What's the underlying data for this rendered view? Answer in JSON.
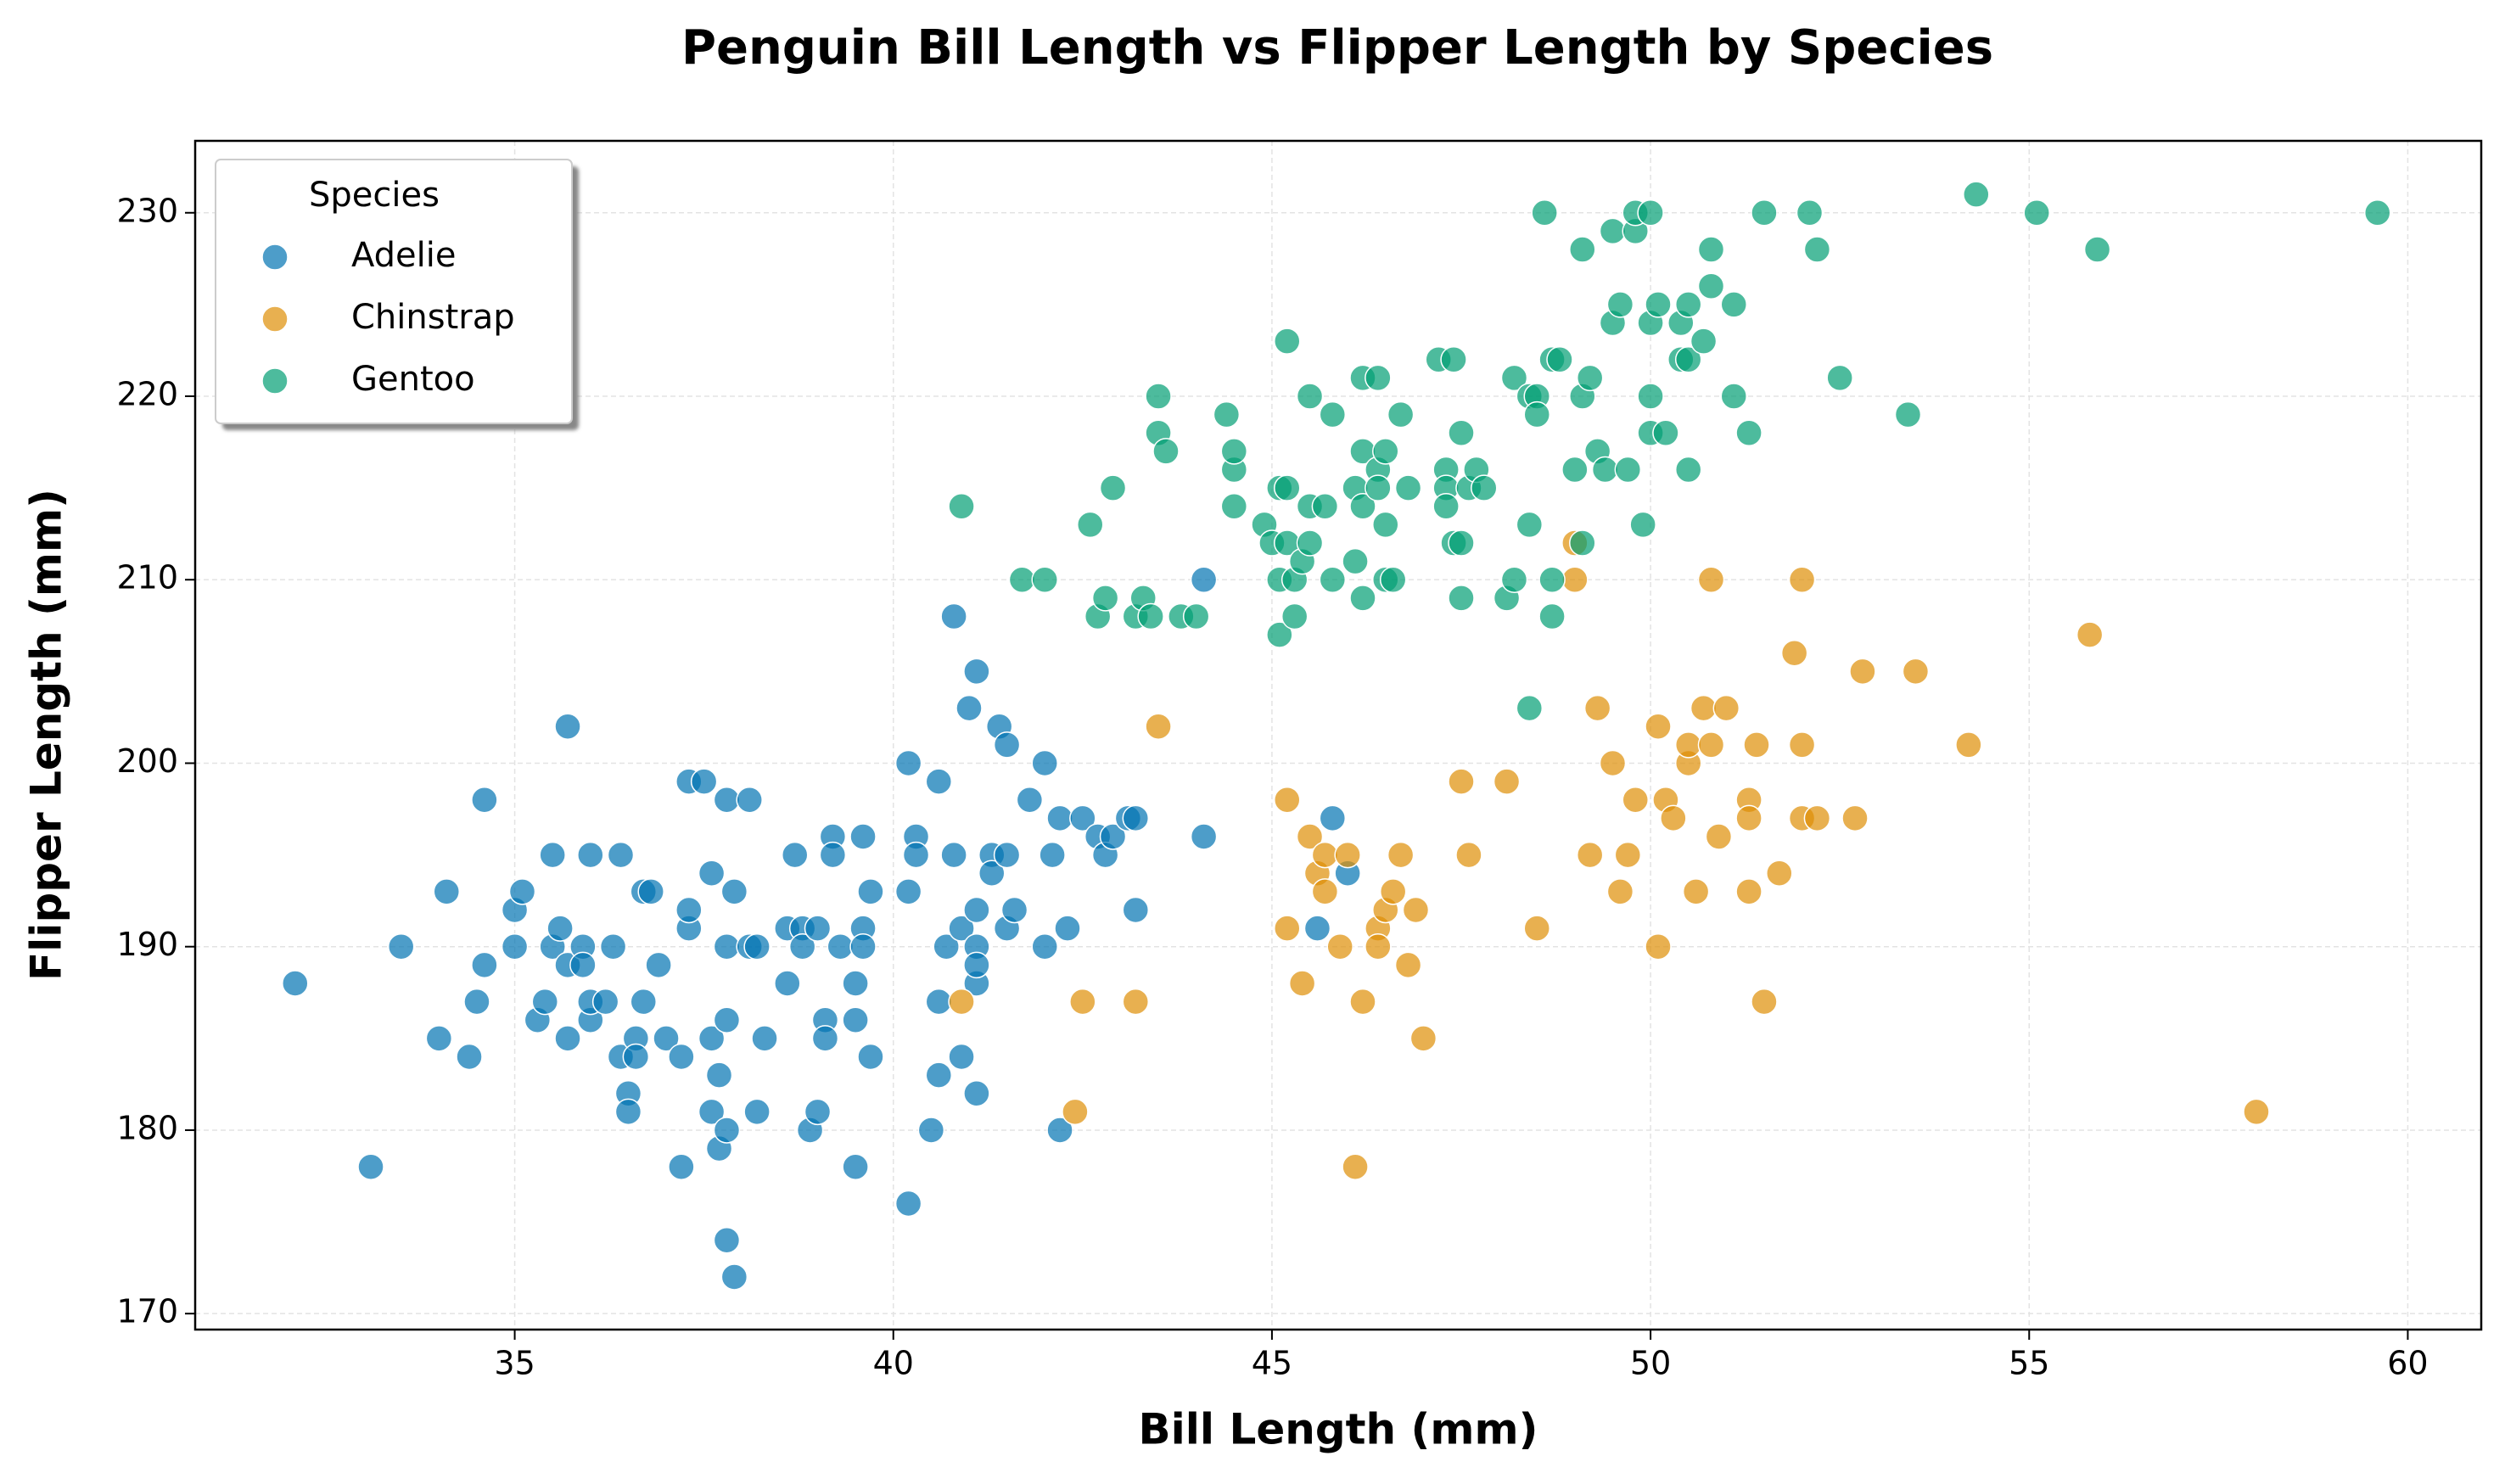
{
  "chart_data": {
    "type": "scatter",
    "title": "Penguin Bill Length vs Flipper Length by Species",
    "x_label": "Bill Length (mm)",
    "y_label": "Flipper Length (mm)",
    "xlim": [
      30.78,
      60.97
    ],
    "ylim": [
      169.13,
      233.92
    ],
    "xticks": [
      35,
      40,
      45,
      50,
      55,
      60
    ],
    "yticks": [
      170,
      180,
      190,
      200,
      210,
      220,
      230
    ],
    "grid": true,
    "legend": "upper left",
    "legend_title": "Species",
    "series": [
      {
        "name": "Adelie",
        "color": "#0173b2",
        "x": [
          32.1,
          33.1,
          33.5,
          34.1,
          34.0,
          34.4,
          34.5,
          34.6,
          34.6,
          35.0,
          35.0,
          35.1,
          35.3,
          35.4,
          35.5,
          35.5,
          35.6,
          35.7,
          35.7,
          35.7,
          35.9,
          35.9,
          36.0,
          36.0,
          36.0,
          36.2,
          36.3,
          36.4,
          36.4,
          36.5,
          36.5,
          36.6,
          36.6,
          36.7,
          36.7,
          36.8,
          36.9,
          37.0,
          37.2,
          37.2,
          37.3,
          37.3,
          37.3,
          37.5,
          37.6,
          37.6,
          37.6,
          37.7,
          37.7,
          37.8,
          37.8,
          37.8,
          37.8,
          37.8,
          37.9,
          37.9,
          38.1,
          38.1,
          38.2,
          38.2,
          38.3,
          38.6,
          38.6,
          38.7,
          38.8,
          38.8,
          38.9,
          39.0,
          39.0,
          39.1,
          39.1,
          39.2,
          39.2,
          39.3,
          39.5,
          39.5,
          39.5,
          39.6,
          39.6,
          39.6,
          39.7,
          39.7,
          40.2,
          40.2,
          40.2,
          40.3,
          40.3,
          40.5,
          40.6,
          40.6,
          40.6,
          40.7,
          40.8,
          40.8,
          40.9,
          40.9,
          41.0,
          41.1,
          41.1,
          41.1,
          41.1,
          41.1,
          41.1,
          41.3,
          41.3,
          41.4,
          41.5,
          41.5,
          41.5,
          41.6,
          41.8,
          42.0,
          42.0,
          42.1,
          42.2,
          42.2,
          42.3,
          42.5,
          42.7,
          42.8,
          42.9,
          43.1,
          43.2,
          43.2,
          44.1,
          44.1,
          45.6,
          45.8,
          46.0
        ],
        "values": [
          188,
          178,
          190,
          193,
          185,
          184,
          187,
          198,
          189,
          190,
          192,
          193,
          186,
          187,
          195,
          190,
          191,
          202,
          185,
          189,
          190,
          189,
          195,
          186,
          187,
          187,
          190,
          195,
          184,
          182,
          181,
          185,
          184,
          193,
          187,
          193,
          189,
          185,
          178,
          184,
          191,
          192,
          199,
          199,
          194,
          185,
          181,
          183,
          179,
          198,
          190,
          186,
          180,
          174,
          172,
          193,
          190,
          198,
          190,
          181,
          185,
          191,
          188,
          195,
          191,
          190,
          180,
          191,
          181,
          186,
          185,
          196,
          195,
          190,
          188,
          186,
          178,
          196,
          191,
          190,
          193,
          184,
          200,
          193,
          176,
          196,
          195,
          180,
          199,
          187,
          183,
          190,
          208,
          195,
          184,
          191,
          203,
          205,
          192,
          190,
          188,
          189,
          182,
          195,
          194,
          202,
          201,
          195,
          191,
          192,
          198,
          200,
          190,
          195,
          197,
          180,
          191,
          197,
          196,
          195,
          196,
          197,
          197,
          192,
          210,
          196,
          191,
          197,
          194
        ]
      },
      {
        "name": "Chinstrap",
        "color": "#de8f05",
        "x": [
          40.9,
          42.4,
          42.5,
          43.2,
          43.5,
          45.2,
          45.2,
          45.4,
          45.5,
          45.6,
          45.7,
          45.7,
          45.9,
          46.0,
          46.1,
          46.2,
          46.4,
          46.4,
          46.5,
          46.6,
          46.7,
          46.8,
          46.9,
          47.0,
          47.5,
          47.6,
          48.1,
          48.5,
          49.0,
          49.0,
          49.2,
          49.3,
          49.5,
          49.6,
          49.7,
          49.8,
          50.1,
          50.1,
          50.2,
          50.3,
          50.5,
          50.5,
          50.6,
          50.7,
          50.8,
          50.8,
          50.9,
          51.0,
          51.3,
          51.3,
          51.3,
          51.4,
          51.5,
          51.7,
          51.9,
          52.0,
          52.0,
          52.0,
          52.2,
          52.7,
          52.8,
          53.5,
          54.2,
          55.8,
          58.0
        ],
        "values": [
          187,
          181,
          187,
          187,
          202,
          198,
          191,
          188,
          196,
          194,
          195,
          193,
          190,
          195,
          178,
          187,
          191,
          190,
          192,
          193,
          195,
          189,
          192,
          185,
          199,
          195,
          199,
          191,
          212,
          210,
          195,
          203,
          200,
          193,
          195,
          198,
          190,
          202,
          198,
          197,
          200,
          201,
          193,
          203,
          201,
          210,
          196,
          203,
          198,
          197,
          193,
          201,
          187,
          194,
          206,
          210,
          201,
          197,
          197,
          197,
          205,
          205,
          201,
          207,
          181
        ]
      },
      {
        "name": "Gentoo",
        "color": "#029e73",
        "x": [
          40.9,
          41.7,
          42.0,
          42.6,
          42.7,
          42.8,
          42.9,
          43.2,
          43.3,
          43.4,
          43.5,
          43.5,
          43.6,
          43.8,
          44.0,
          44.4,
          44.5,
          44.5,
          44.5,
          44.9,
          45.0,
          45.1,
          45.1,
          45.1,
          45.2,
          45.2,
          45.2,
          45.3,
          45.3,
          45.4,
          45.5,
          45.5,
          45.5,
          45.7,
          45.8,
          45.8,
          46.1,
          46.1,
          46.2,
          46.2,
          46.2,
          46.2,
          46.4,
          46.4,
          46.4,
          46.5,
          46.5,
          46.5,
          46.6,
          46.7,
          46.8,
          47.2,
          47.3,
          47.3,
          47.3,
          47.4,
          47.4,
          47.5,
          47.5,
          47.5,
          47.6,
          47.7,
          47.8,
          48.1,
          48.2,
          48.2,
          48.4,
          48.4,
          48.4,
          48.5,
          48.5,
          48.6,
          48.7,
          48.7,
          48.7,
          48.8,
          49.0,
          49.1,
          49.1,
          49.1,
          49.2,
          49.3,
          49.4,
          49.5,
          49.5,
          49.6,
          49.7,
          49.8,
          49.8,
          49.9,
          50.0,
          50.0,
          50.0,
          50.0,
          50.1,
          50.2,
          50.4,
          50.4,
          50.5,
          50.5,
          50.5,
          50.7,
          50.8,
          50.8,
          51.1,
          51.1,
          51.3,
          51.5,
          52.1,
          52.2,
          52.5,
          53.4,
          54.3,
          55.1,
          55.9,
          59.6
        ],
        "values": [
          214,
          210,
          210,
          213,
          208,
          209,
          215,
          208,
          209,
          208,
          218,
          220,
          217,
          208,
          208,
          219,
          216,
          217,
          214,
          213,
          212,
          215,
          210,
          207,
          223,
          215,
          212,
          208,
          210,
          211,
          214,
          220,
          212,
          214,
          210,
          219,
          215,
          211,
          221,
          217,
          214,
          209,
          216,
          221,
          215,
          217,
          213,
          210,
          210,
          219,
          215,
          222,
          216,
          215,
          214,
          222,
          212,
          212,
          218,
          209,
          215,
          216,
          215,
          209,
          210,
          221,
          203,
          213,
          220,
          220,
          219,
          230,
          222,
          210,
          208,
          222,
          216,
          228,
          212,
          220,
          221,
          217,
          216,
          229,
          224,
          225,
          216,
          229,
          230,
          213,
          230,
          224,
          220,
          218,
          225,
          218,
          222,
          224,
          225,
          222,
          216,
          223,
          228,
          226,
          225,
          220,
          218,
          230,
          230,
          228,
          221,
          219,
          231,
          230,
          228,
          230
        ]
      }
    ]
  }
}
